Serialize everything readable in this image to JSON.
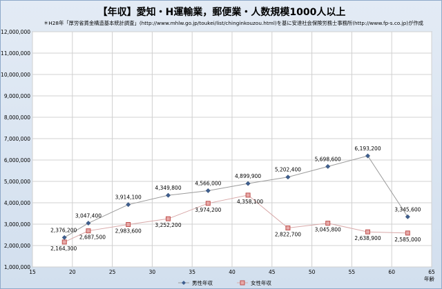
{
  "chart_data": {
    "type": "line",
    "title": "【年収】愛知・H運輸業，郵便業・人数規模1000人以上",
    "subtitle": "＊H28年「厚労省賃金構造基本統計調査」(http://www.mhlw.go.jp/toukei/list/chinginkouzou.html)を基に安達社会保険労務士事務所(http://www.fp-s.co.jp)が作成",
    "xlabel": "年齢",
    "ylabel": "",
    "xlim": [
      15,
      65
    ],
    "ylim": [
      1000000,
      12000000
    ],
    "xticks": [
      15,
      20,
      25,
      30,
      35,
      40,
      45,
      50,
      55,
      60,
      65
    ],
    "yticks": [
      1000000,
      2000000,
      3000000,
      4000000,
      5000000,
      6000000,
      7000000,
      8000000,
      9000000,
      10000000,
      11000000,
      12000000
    ],
    "ytick_labels": [
      "1,000,000",
      "2,000,000",
      "3,000,000",
      "4,000,000",
      "5,000,000",
      "6,000,000",
      "7,000,000",
      "8,000,000",
      "9,000,000",
      "10,000,000",
      "11,000,000",
      "12,000,000"
    ],
    "xtick_labels": [
      "15",
      "20",
      "25",
      "30",
      "35",
      "40",
      "45",
      "50",
      "55",
      "60",
      "65"
    ],
    "grid": true,
    "legend_position": "bottom",
    "series": [
      {
        "name": "男性年収",
        "color": "#3f5f8f",
        "marker": "diamond",
        "x": [
          19,
          22,
          27,
          32,
          37,
          42,
          47,
          52,
          57,
          62
        ],
        "values": [
          2376200,
          3047400,
          3914100,
          4349800,
          4566000,
          4899900,
          5202400,
          5698600,
          6193200,
          3345600
        ],
        "labels": [
          "2,376,200",
          "3,047,400",
          "3,914,100",
          "4,349,800",
          "4,566,000",
          "4,899,900",
          "5,202,400",
          "5,698,600",
          "6,193,200",
          "3,345,600"
        ]
      },
      {
        "name": "女性年収",
        "color": "#c0504d",
        "marker": "square",
        "x": [
          19,
          22,
          27,
          32,
          37,
          42,
          47,
          52,
          57,
          62
        ],
        "values": [
          2164300,
          2687500,
          2983600,
          3252200,
          3974200,
          4358100,
          2822700,
          3045800,
          2638900,
          2585000
        ],
        "labels": [
          "2,164,300",
          "2,687,500",
          "2,983,600",
          "3,252,200",
          "3,974,200",
          "4,358,100",
          "2,822,700",
          "3,045,800",
          "2,638,900",
          "2,585,000"
        ]
      }
    ]
  }
}
